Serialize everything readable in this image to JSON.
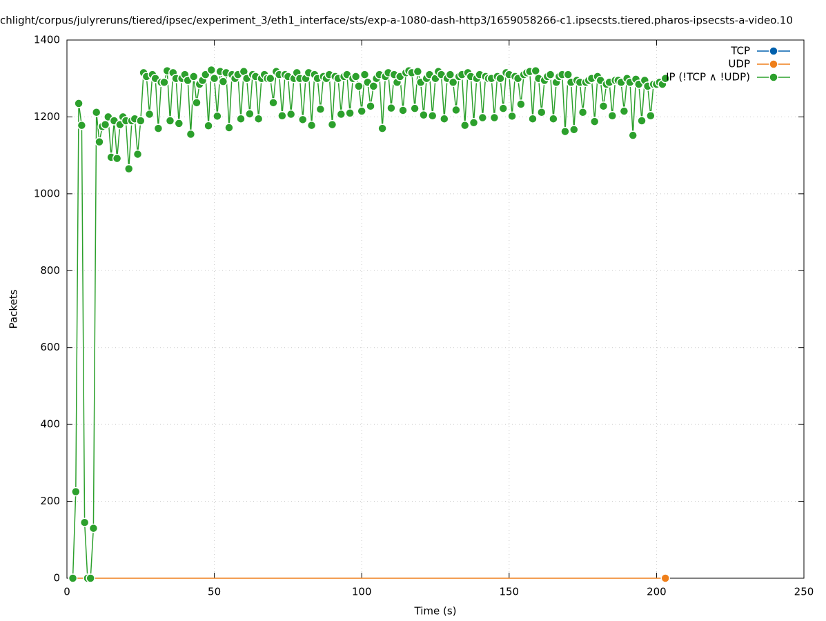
{
  "chart_data": {
    "type": "line",
    "title": "chlight/corpus/julyreruns/tiered/ipsec/experiment_3/eth1_interface/sts/exp-a-1080-dash-http3/1659058266-c1.ipsecsts.tiered.pharos-ipsecsts-a-video.10",
    "xlabel": "Time (s)",
    "ylabel": "Packets",
    "xlim": [
      0,
      250
    ],
    "xticks": [
      0,
      50,
      100,
      150,
      200,
      250
    ],
    "ylim": [
      0,
      1400
    ],
    "yticks": [
      0,
      200,
      400,
      600,
      800,
      1000,
      1200,
      1400
    ],
    "grid": true,
    "legend": "top-right",
    "x": [
      2,
      3,
      4,
      5,
      6,
      7,
      8,
      9,
      10,
      11,
      12,
      13,
      14,
      15,
      16,
      17,
      18,
      19,
      20,
      21,
      22,
      23,
      24,
      25,
      26,
      27,
      28,
      29,
      30,
      31,
      32,
      33,
      34,
      35,
      36,
      37,
      38,
      39,
      40,
      41,
      42,
      43,
      44,
      45,
      46,
      47,
      48,
      49,
      50,
      51,
      52,
      53,
      54,
      55,
      56,
      57,
      58,
      59,
      60,
      61,
      62,
      63,
      64,
      65,
      66,
      67,
      68,
      69,
      70,
      71,
      72,
      73,
      74,
      75,
      76,
      77,
      78,
      79,
      80,
      81,
      82,
      83,
      84,
      85,
      86,
      87,
      88,
      89,
      90,
      91,
      92,
      93,
      94,
      95,
      96,
      97,
      98,
      99,
      100,
      101,
      102,
      103,
      104,
      105,
      106,
      107,
      108,
      109,
      110,
      111,
      112,
      113,
      114,
      115,
      116,
      117,
      118,
      119,
      120,
      121,
      122,
      123,
      124,
      125,
      126,
      127,
      128,
      129,
      130,
      131,
      132,
      133,
      134,
      135,
      136,
      137,
      138,
      139,
      140,
      141,
      142,
      143,
      144,
      145,
      146,
      147,
      148,
      149,
      150,
      151,
      152,
      153,
      154,
      155,
      156,
      157,
      158,
      159,
      160,
      161,
      162,
      163,
      164,
      165,
      166,
      167,
      168,
      169,
      170,
      171,
      172,
      173,
      174,
      175,
      176,
      177,
      178,
      179,
      180,
      181,
      182,
      183,
      184,
      185,
      186,
      187,
      188,
      189,
      190,
      191,
      192,
      193,
      194,
      195,
      196,
      197,
      198,
      199,
      200,
      201,
      202,
      203
    ],
    "series": [
      {
        "name": "TCP",
        "color": "#0060ad",
        "values": [
          null,
          null,
          null,
          null,
          null,
          null,
          null,
          null,
          null,
          null,
          null,
          null,
          null,
          null,
          null,
          null,
          null,
          null,
          null,
          null,
          null,
          null,
          null,
          null,
          null,
          null,
          null,
          null,
          null,
          null,
          null,
          null,
          null,
          null,
          null,
          null,
          null,
          null,
          null,
          null,
          null,
          null,
          null,
          null,
          null,
          null,
          null,
          null,
          null,
          null,
          null,
          null,
          null,
          null,
          null,
          null,
          null,
          null,
          null,
          null,
          null,
          null,
          null,
          null,
          null,
          null,
          null,
          null,
          null,
          null,
          null,
          null,
          null,
          null,
          null,
          null,
          null,
          null,
          null,
          null,
          null,
          null,
          null,
          null,
          null,
          null,
          null,
          null,
          null,
          null,
          null,
          null,
          null,
          null,
          null,
          null,
          null,
          null,
          null,
          null,
          null,
          null,
          null,
          null,
          null,
          null,
          null,
          null,
          null,
          null,
          null,
          null,
          null,
          null,
          null,
          null,
          null,
          null,
          null,
          null,
          null,
          null,
          null,
          null,
          null,
          null,
          null,
          null,
          null,
          null,
          null,
          null,
          null,
          null,
          null,
          null,
          null,
          null,
          null,
          null,
          null,
          null,
          null,
          null,
          null,
          null,
          null,
          null,
          null,
          null,
          null,
          null,
          null,
          null,
          null,
          null,
          null,
          null,
          null,
          null,
          null,
          null,
          null,
          null,
          null,
          null,
          null,
          null,
          null,
          null,
          null,
          null,
          null,
          null,
          null,
          null,
          null,
          null,
          null,
          null,
          null,
          null,
          null,
          null,
          null,
          null,
          null,
          null,
          null,
          null,
          null,
          null,
          null,
          null,
          null,
          null,
          null,
          null,
          null,
          null,
          null,
          null
        ]
      },
      {
        "name": "UDP",
        "color": "#ef7f1a",
        "values": [
          0,
          0,
          0,
          0,
          0,
          0,
          0,
          0,
          0,
          0,
          0,
          0,
          0,
          0,
          0,
          0,
          0,
          0,
          0,
          0,
          0,
          0,
          0,
          0,
          0,
          0,
          0,
          0,
          0,
          0,
          0,
          0,
          0,
          0,
          0,
          0,
          0,
          0,
          0,
          0,
          0,
          0,
          0,
          0,
          0,
          0,
          0,
          0,
          0,
          0,
          0,
          0,
          0,
          0,
          0,
          0,
          0,
          0,
          0,
          0,
          0,
          0,
          0,
          0,
          0,
          0,
          0,
          0,
          0,
          0,
          0,
          0,
          0,
          0,
          0,
          0,
          0,
          0,
          0,
          0,
          0,
          0,
          0,
          0,
          0,
          0,
          0,
          0,
          0,
          0,
          0,
          0,
          0,
          0,
          0,
          0,
          0,
          0,
          0,
          0,
          0,
          0,
          0,
          0,
          0,
          0,
          0,
          0,
          0,
          0,
          0,
          0,
          0,
          0,
          0,
          0,
          0,
          0,
          0,
          0,
          0,
          0,
          0,
          0,
          0,
          0,
          0,
          0,
          0,
          0,
          0,
          0,
          0,
          0,
          0,
          0,
          0,
          0,
          0,
          0,
          0,
          0,
          0,
          0,
          0,
          0,
          0,
          0,
          0,
          0,
          0,
          0,
          0,
          0,
          0,
          0,
          0,
          0,
          0,
          0,
          0,
          0,
          0,
          0,
          0,
          0,
          0,
          0,
          0,
          0,
          0,
          0,
          0,
          0,
          0,
          0,
          0,
          0,
          0,
          0,
          0,
          0,
          0,
          0,
          0,
          0,
          0,
          0,
          0,
          0,
          0,
          0,
          0,
          0,
          0,
          0,
          0,
          0,
          0,
          0,
          0,
          0
        ]
      },
      {
        "name": "IP (!TCP ∧ !UDP)",
        "color": "#2ca02c",
        "values": [
          0,
          225,
          1235,
          1178,
          145,
          0,
          0,
          130,
          1212,
          1135,
          1175,
          1180,
          1200,
          1095,
          1190,
          1092,
          1180,
          1200,
          1190,
          1065,
          1190,
          1195,
          1103,
          1190,
          1315,
          1305,
          1207,
          1310,
          1300,
          1170,
          1290,
          1290,
          1320,
          1190,
          1315,
          1300,
          1183,
          1300,
          1310,
          1295,
          1155,
          1305,
          1237,
          1285,
          1295,
          1310,
          1177,
          1322,
          1300,
          1202,
          1318,
          1292,
          1315,
          1172,
          1310,
          1300,
          1310,
          1195,
          1318,
          1300,
          1208,
          1310,
          1305,
          1195,
          1300,
          1310,
          1300,
          1300,
          1237,
          1318,
          1310,
          1203,
          1310,
          1305,
          1207,
          1300,
          1315,
          1300,
          1193,
          1300,
          1315,
          1178,
          1310,
          1300,
          1220,
          1305,
          1300,
          1310,
          1180,
          1305,
          1300,
          1207,
          1305,
          1310,
          1210,
          1300,
          1305,
          1280,
          1215,
          1310,
          1290,
          1228,
          1280,
          1300,
          1310,
          1170,
          1305,
          1315,
          1223,
          1310,
          1290,
          1305,
          1217,
          1315,
          1320,
          1315,
          1222,
          1318,
          1290,
          1205,
          1300,
          1310,
          1203,
          1300,
          1318,
          1310,
          1195,
          1300,
          1310,
          1290,
          1218,
          1305,
          1310,
          1178,
          1315,
          1305,
          1185,
          1300,
          1310,
          1198,
          1305,
          1300,
          1300,
          1198,
          1305,
          1300,
          1222,
          1315,
          1310,
          1202,
          1305,
          1300,
          1233,
          1310,
          1315,
          1318,
          1195,
          1320,
          1300,
          1212,
          1295,
          1305,
          1310,
          1195,
          1290,
          1305,
          1310,
          1162,
          1310,
          1290,
          1167,
          1295,
          1290,
          1212,
          1290,
          1295,
          1300,
          1188,
          1305,
          1295,
          1228,
          1285,
          1290,
          1203,
          1295,
          1295,
          1290,
          1215,
          1300,
          1290,
          1152,
          1298,
          1285,
          1190,
          1295,
          1280,
          1203,
          1285,
          1285,
          1290,
          1285,
          1300
        ]
      }
    ]
  }
}
